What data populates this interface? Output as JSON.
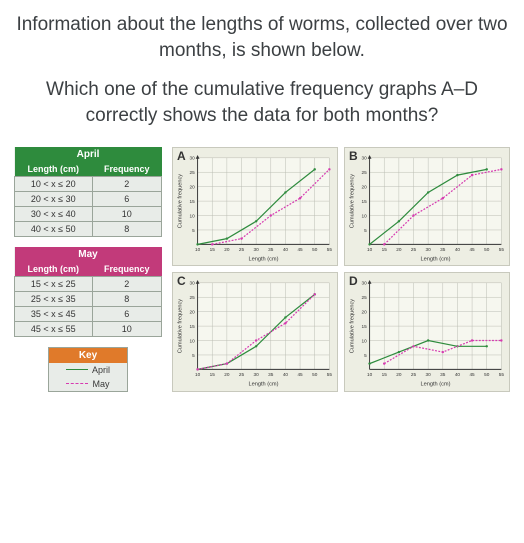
{
  "question": {
    "p1": "Information about the lengths of worms, collected over two months, is shown below.",
    "p2": "Which one of the cumulative frequency graphs A–D correctly shows the data for both months?"
  },
  "tables": {
    "april": {
      "title": "April",
      "title_bg": "#2e8b3d",
      "col1": "Length (cm)",
      "col2": "Frequency",
      "rows": [
        {
          "range": "10 < x ≤ 20",
          "freq": "2"
        },
        {
          "range": "20 < x ≤ 30",
          "freq": "6"
        },
        {
          "range": "30 < x ≤ 40",
          "freq": "10"
        },
        {
          "range": "40 < x ≤ 50",
          "freq": "8"
        }
      ]
    },
    "may": {
      "title": "May",
      "title_bg": "#c23a7a",
      "col1": "Length (cm)",
      "col2": "Frequency",
      "rows": [
        {
          "range": "15 < x ≤ 25",
          "freq": "2"
        },
        {
          "range": "25 < x ≤ 35",
          "freq": "8"
        },
        {
          "range": "35 < x ≤ 45",
          "freq": "6"
        },
        {
          "range": "45 < x ≤ 55",
          "freq": "10"
        }
      ]
    }
  },
  "key": {
    "title": "Key",
    "title_bg": "#e07a2a",
    "april_label": "April",
    "april_color": "#2e8b3d",
    "may_label": "May",
    "may_color": "#d63ab0"
  },
  "chart_common": {
    "type": "line",
    "xlabel": "Length (cm)",
    "ylabel": "Cumulative frequency",
    "xlim": [
      10,
      55
    ],
    "ylim": [
      0,
      30
    ],
    "xtick_step": 5,
    "ytick_step": 5,
    "background_color": "#edeee3",
    "grid_color": "#b8bab0",
    "axis_color": "#333333",
    "label_fontsize": 6,
    "tick_fontsize": 5,
    "series_colors": {
      "april": "#2e8b3d",
      "may": "#d63ab0"
    },
    "may_dash": "2 1.5",
    "line_width": 1.3,
    "marker": "circle",
    "marker_size": 1.3
  },
  "charts": {
    "A": {
      "label": "A",
      "april": [
        [
          10,
          0
        ],
        [
          20,
          2
        ],
        [
          30,
          8
        ],
        [
          40,
          18
        ],
        [
          50,
          26
        ]
      ],
      "may": [
        [
          15,
          0
        ],
        [
          25,
          2
        ],
        [
          35,
          10
        ],
        [
          45,
          16
        ],
        [
          55,
          26
        ]
      ]
    },
    "B": {
      "label": "B",
      "april": [
        [
          10,
          0
        ],
        [
          20,
          8
        ],
        [
          30,
          18
        ],
        [
          40,
          24
        ],
        [
          50,
          26
        ]
      ],
      "may": [
        [
          15,
          0
        ],
        [
          25,
          10
        ],
        [
          35,
          16
        ],
        [
          45,
          24
        ],
        [
          55,
          26
        ]
      ]
    },
    "C": {
      "label": "C",
      "april": [
        [
          10,
          0
        ],
        [
          20,
          2
        ],
        [
          30,
          8
        ],
        [
          40,
          18
        ],
        [
          50,
          26
        ]
      ],
      "may": [
        [
          10,
          0
        ],
        [
          20,
          2
        ],
        [
          30,
          10
        ],
        [
          40,
          16
        ],
        [
          50,
          26
        ]
      ]
    },
    "D": {
      "label": "D",
      "april": [
        [
          10,
          2
        ],
        [
          20,
          6
        ],
        [
          30,
          10
        ],
        [
          40,
          8
        ],
        [
          50,
          8
        ]
      ],
      "may": [
        [
          15,
          2
        ],
        [
          25,
          8
        ],
        [
          35,
          6
        ],
        [
          45,
          10
        ],
        [
          55,
          10
        ]
      ]
    }
  }
}
